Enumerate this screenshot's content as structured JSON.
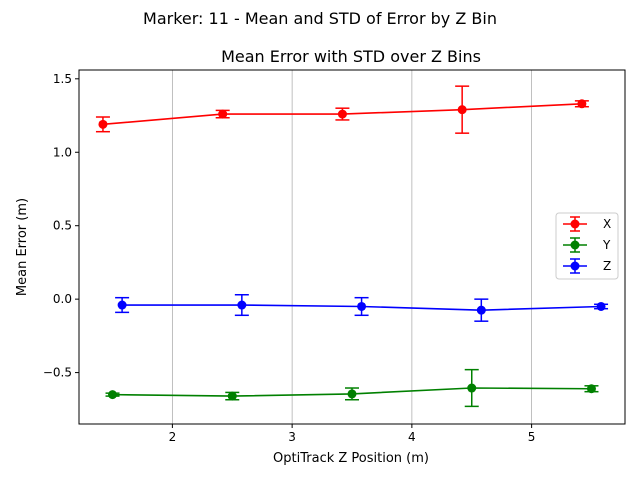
{
  "figure_title": "Marker: 11 - Mean and STD of Error by Z Bin",
  "chart_data": {
    "type": "line",
    "title": "Mean Error with STD over Z Bins",
    "xlabel": "OptiTrack Z Position (m)",
    "ylabel": "Mean Error (m)",
    "xlim": [
      1.22,
      5.78
    ],
    "ylim": [
      -0.85,
      1.56
    ],
    "xticks": [
      2,
      3,
      4,
      5
    ],
    "xtick_labels": [
      "2",
      "3",
      "4",
      "5"
    ],
    "yticks": [
      1.5,
      1.0,
      0.5,
      0.0,
      -0.5
    ],
    "ytick_labels": [
      "1.5",
      "1.0",
      "0.5",
      "0.0",
      "−0.5"
    ],
    "grid": "vertical",
    "legend_position": "center-right",
    "series": [
      {
        "name": "X",
        "color": "#ff0000",
        "x": [
          1.42,
          2.42,
          3.42,
          4.42,
          5.42
        ],
        "values": [
          1.19,
          1.26,
          1.26,
          1.29,
          1.33
        ],
        "std": [
          0.05,
          0.025,
          0.04,
          0.16,
          0.02
        ]
      },
      {
        "name": "Y",
        "color": "#008000",
        "x": [
          1.5,
          2.5,
          3.5,
          4.5,
          5.5
        ],
        "values": [
          -0.65,
          -0.66,
          -0.645,
          -0.605,
          -0.61
        ],
        "std": [
          0.01,
          0.025,
          0.04,
          0.125,
          0.02
        ]
      },
      {
        "name": "Z",
        "color": "#0000ff",
        "x": [
          1.58,
          2.58,
          3.58,
          4.58,
          5.58
        ],
        "values": [
          -0.04,
          -0.04,
          -0.05,
          -0.075,
          -0.05
        ],
        "std": [
          0.05,
          0.07,
          0.06,
          0.075,
          0.015
        ]
      }
    ]
  }
}
